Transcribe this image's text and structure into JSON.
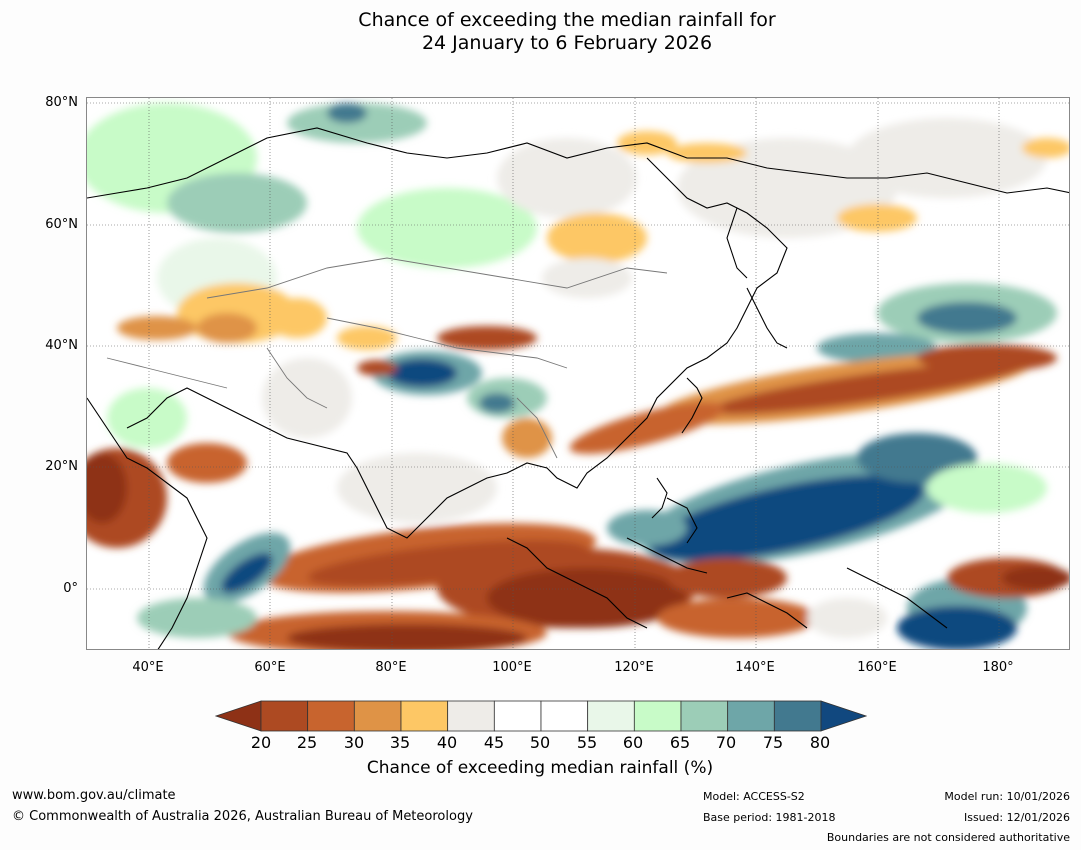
{
  "title": {
    "line1": "Chance of exceeding the median rainfall for",
    "line2": "24 January to 6 February 2026"
  },
  "map": {
    "lat_labels": [
      "80°N",
      "60°N",
      "40°N",
      "20°N",
      "0°"
    ],
    "lon_labels": [
      "40°E",
      "60°E",
      "80°E",
      "100°E",
      "120°E",
      "140°E",
      "160°E",
      "180°"
    ]
  },
  "legend": {
    "ticks": [
      "20",
      "25",
      "30",
      "35",
      "40",
      "45",
      "50",
      "55",
      "60",
      "65",
      "70",
      "75",
      "80"
    ],
    "colors": [
      "#8e3116",
      "#ad4a22",
      "#c8642e",
      "#df9346",
      "#fdc765",
      "#eeece8",
      "#ffffff",
      "#ffffff",
      "#e9f7e9",
      "#c8fbc8",
      "#9ccdb7",
      "#6ea6a8",
      "#42798f",
      "#11487f"
    ],
    "label": "Chance of exceeding median rainfall (%)"
  },
  "footer": {
    "url": "www.bom.gov.au/climate",
    "copyright": "© Commonwealth of Australia 2026, Australian Bureau of Meteorology",
    "model": "Model: ACCESS-S2",
    "base_period": "Base period: 1981-2018",
    "model_run": "Model run: 10/01/2026",
    "issued": "Issued: 12/01/2026",
    "disclaimer": "Boundaries are not considered authoritative"
  }
}
